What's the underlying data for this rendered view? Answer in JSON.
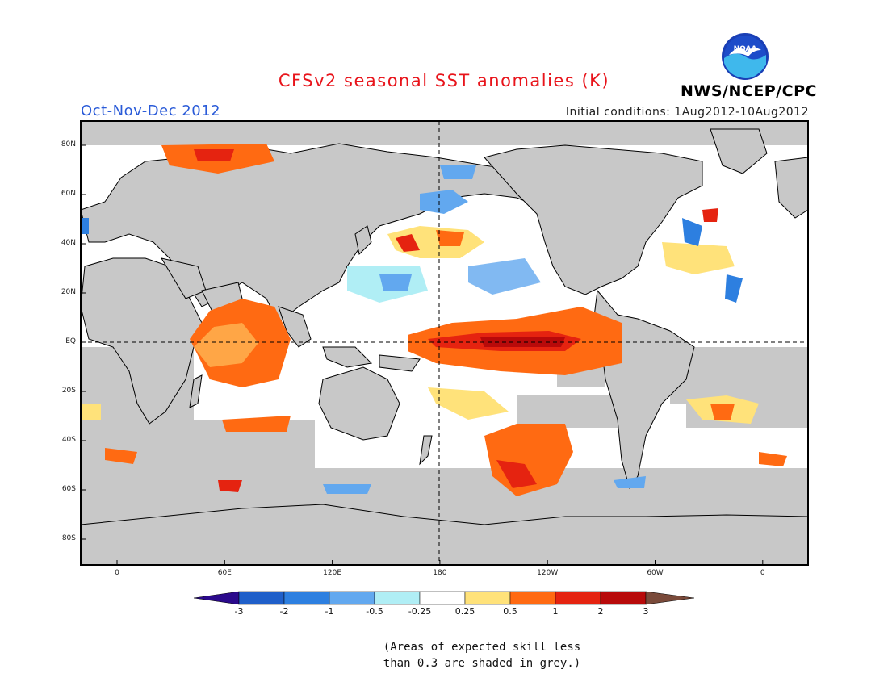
{
  "header": {
    "title": "CFSv2 seasonal SST anomalies (K)",
    "period": "Oct-Nov-Dec 2012",
    "initial_conditions": "Initial conditions: 1Aug2012-10Aug2012",
    "agency": "NWS/NCEP/CPC",
    "logo_text": "NOAA",
    "logo_icon": "noaa-seagull-logo"
  },
  "map": {
    "lat_labels": [
      "80N",
      "60N",
      "40N",
      "20N",
      "EQ",
      "20S",
      "40S",
      "60S",
      "80S"
    ],
    "lon_labels": [
      "0",
      "60E",
      "120E",
      "180",
      "120W",
      "60W",
      "0"
    ],
    "land_color": "#c8c8c8",
    "grid_lines": "dashed equator and 180 meridian"
  },
  "colorbar": {
    "levels": [
      "-3",
      "-2",
      "-1",
      "-0.5",
      "-0.25",
      "0.25",
      "0.5",
      "1",
      "2",
      "3"
    ],
    "colors": [
      "#2b0a8c",
      "#1f5fc9",
      "#2d7fe0",
      "#62a8ef",
      "#b0eef5",
      "#ffffff",
      "#ffe27a",
      "#ff6a12",
      "#e52310",
      "#b80a0a",
      "#7a4a3a"
    ]
  },
  "footnote": {
    "line1": "(Areas of expected skill less",
    "line2": "than 0.3 are shaded in grey.)"
  }
}
